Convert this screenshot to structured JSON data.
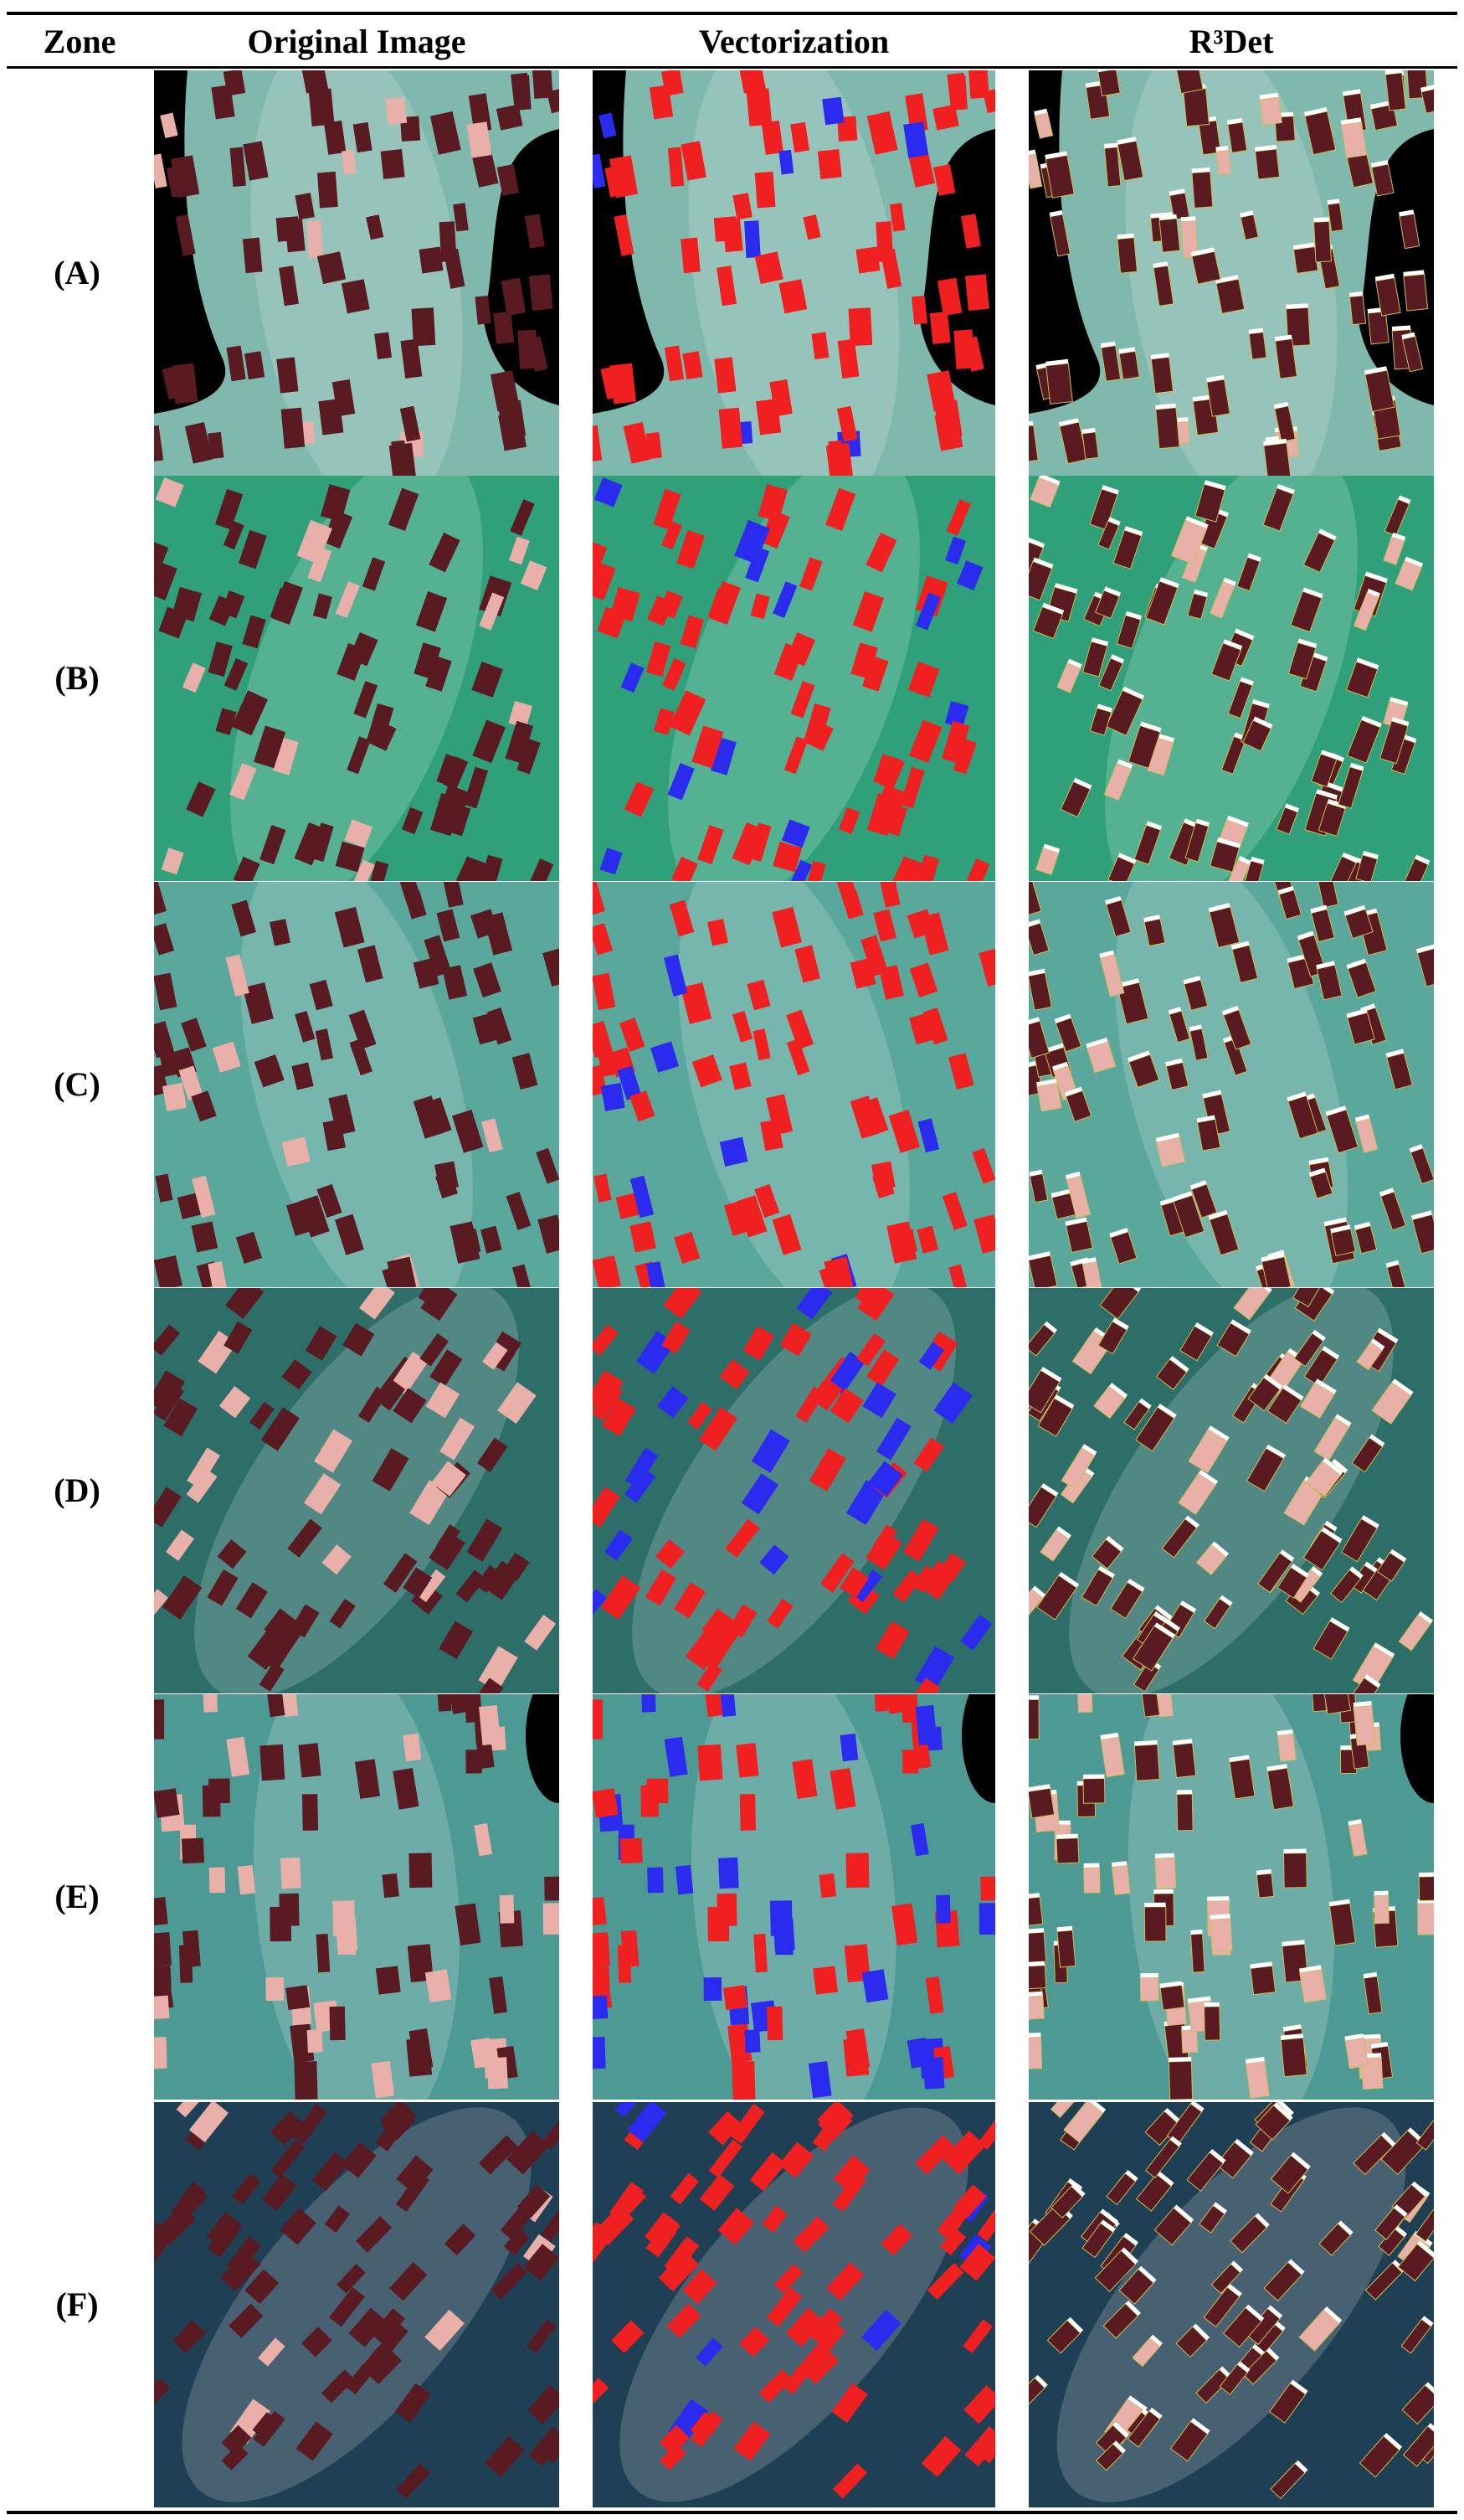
{
  "table": {
    "header": [
      "Zone",
      "Original Image",
      "Vectorization",
      "R³Det"
    ],
    "rows": [
      "(A)",
      "(B)",
      "(C)",
      "(D)",
      "(E)",
      "(F)"
    ]
  }
}
